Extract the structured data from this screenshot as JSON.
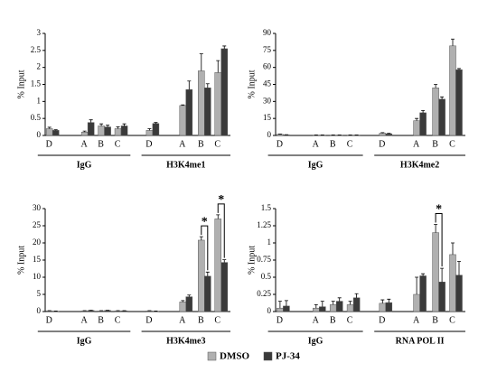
{
  "chart_data": [
    {
      "type": "bar",
      "y_label": "% Input",
      "categories": [
        "D",
        "A",
        "B",
        "C",
        "D",
        "A",
        "B",
        "C"
      ],
      "groups": [
        "IgG",
        "H3K4me1"
      ],
      "series": [
        {
          "name": "DMSO",
          "color": "#b0b0b0",
          "values": [
            0.2,
            0.1,
            0.28,
            0.2,
            0.15,
            0.88,
            1.9,
            1.85
          ],
          "errors": [
            0.04,
            0.03,
            0.06,
            0.05,
            0.05,
            0.02,
            0.5,
            0.35
          ]
        },
        {
          "name": "PJ-34",
          "color": "#3a3a3a",
          "values": [
            0.15,
            0.38,
            0.25,
            0.28,
            0.35,
            1.35,
            1.4,
            2.55
          ],
          "errors": [
            0.02,
            0.08,
            0.05,
            0.06,
            0.03,
            0.25,
            0.12,
            0.08
          ]
        }
      ],
      "ylim": [
        0,
        3
      ],
      "yticks": [
        0,
        0.5,
        1,
        1.5,
        2,
        2.5,
        3
      ]
    },
    {
      "type": "bar",
      "y_label": "% Input",
      "categories": [
        "D",
        "A",
        "B",
        "C",
        "D",
        "A",
        "B",
        "C"
      ],
      "groups": [
        "IgG",
        "H3K4me2"
      ],
      "series": [
        {
          "color": "#b0b0b0",
          "values": [
            1,
            0.3,
            0.3,
            0.3,
            2,
            13,
            42,
            79
          ],
          "errors": [
            0.3,
            0.2,
            0.2,
            0.2,
            0.5,
            2,
            3,
            6
          ]
        },
        {
          "color": "#3a3a3a",
          "values": [
            0.5,
            0.3,
            0.3,
            0.3,
            1.5,
            20,
            32,
            58
          ],
          "errors": [
            0.2,
            0.2,
            0.2,
            0.2,
            0.4,
            2,
            2,
            1
          ]
        }
      ],
      "ylim": [
        0,
        90
      ],
      "yticks": [
        0,
        15,
        30,
        45,
        60,
        75,
        90
      ]
    },
    {
      "type": "bar",
      "y_label": "% Input",
      "categories": [
        "D",
        "A",
        "B",
        "C",
        "D",
        "A",
        "B",
        "C"
      ],
      "groups": [
        "IgG",
        "H3K4me3"
      ],
      "series": [
        {
          "color": "#b0b0b0",
          "values": [
            0.2,
            0.2,
            0.2,
            0.2,
            0.2,
            2.8,
            20.8,
            27
          ],
          "errors": [
            0.05,
            0.05,
            0.05,
            0.05,
            0.05,
            0.4,
            1,
            1.2
          ]
        },
        {
          "color": "#3a3a3a",
          "values": [
            0.1,
            0.3,
            0.3,
            0.2,
            0.1,
            4.3,
            10.3,
            14.3
          ],
          "errors": [
            0.05,
            0.05,
            0.05,
            0.05,
            0.05,
            0.5,
            1.2,
            0.8
          ]
        }
      ],
      "ylim": [
        0,
        30
      ],
      "yticks": [
        0,
        5,
        10,
        15,
        20,
        25,
        30
      ],
      "annotations": [
        {
          "text": "*",
          "x": 6
        },
        {
          "text": "*",
          "x": 7
        }
      ]
    },
    {
      "type": "bar",
      "y_label": "% Input",
      "categories": [
        "D",
        "A",
        "B",
        "C",
        "D",
        "A",
        "B",
        "C"
      ],
      "groups": [
        "IgG",
        "RNA POL II"
      ],
      "series": [
        {
          "color": "#b0b0b0",
          "values": [
            0.05,
            0.05,
            0.1,
            0.1,
            0.12,
            0.25,
            1.15,
            0.83
          ],
          "errors": [
            0.1,
            0.05,
            0.05,
            0.05,
            0.05,
            0.25,
            0.12,
            0.17
          ]
        },
        {
          "color": "#3a3a3a",
          "values": [
            0.08,
            0.07,
            0.15,
            0.2,
            0.13,
            0.52,
            0.43,
            0.53
          ],
          "errors": [
            0.08,
            0.08,
            0.05,
            0.06,
            0.05,
            0.03,
            0.2,
            0.2
          ]
        }
      ],
      "ylim": [
        0,
        1.5
      ],
      "yticks": [
        0,
        0.25,
        0.5,
        0.75,
        1,
        1.25,
        1.5
      ],
      "annotations": [
        {
          "text": "*",
          "x": 6
        }
      ]
    }
  ]
}
